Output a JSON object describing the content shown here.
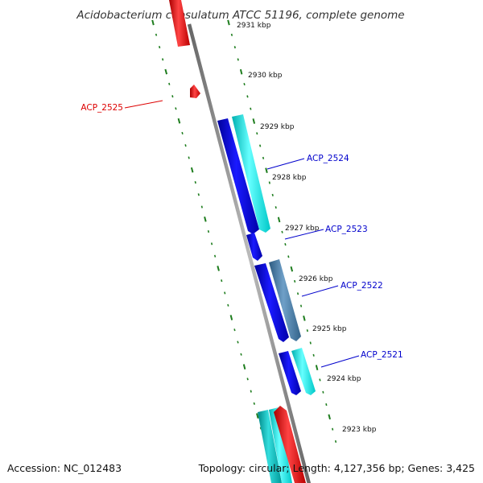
{
  "title": "Acidobacterium capsulatum ATCC 51196, complete genome",
  "footer": {
    "accession": "Accession: NC_012483",
    "summary": "Topology: circular; Length: 4,127,356 bp; Genes: 3,425"
  },
  "colors": {
    "backbone": "#888888",
    "tick": "#1e7d1e",
    "forward_label": "#0000cc",
    "reverse_label": "#dd0000",
    "gene_blue": "#0a0ad8",
    "gene_cyan": "#00e6e6",
    "gene_steel": "#4a7fa8",
    "gene_red": "#ee1111",
    "gene_teal": "#00b3b3"
  },
  "kbp_labels": [
    "2931 kbp",
    "2930 kbp",
    "2929 kbp",
    "2928 kbp",
    "2927 kbp",
    "2926 kbp",
    "2925 kbp",
    "2924 kbp",
    "2923 kbp"
  ],
  "gene_labels": [
    {
      "name": "ACP_2525",
      "strand": "reverse"
    },
    {
      "name": "ACP_2524",
      "strand": "forward"
    },
    {
      "name": "ACP_2523",
      "strand": "forward"
    },
    {
      "name": "ACP_2522",
      "strand": "forward"
    },
    {
      "name": "ACP_2521",
      "strand": "forward"
    }
  ]
}
